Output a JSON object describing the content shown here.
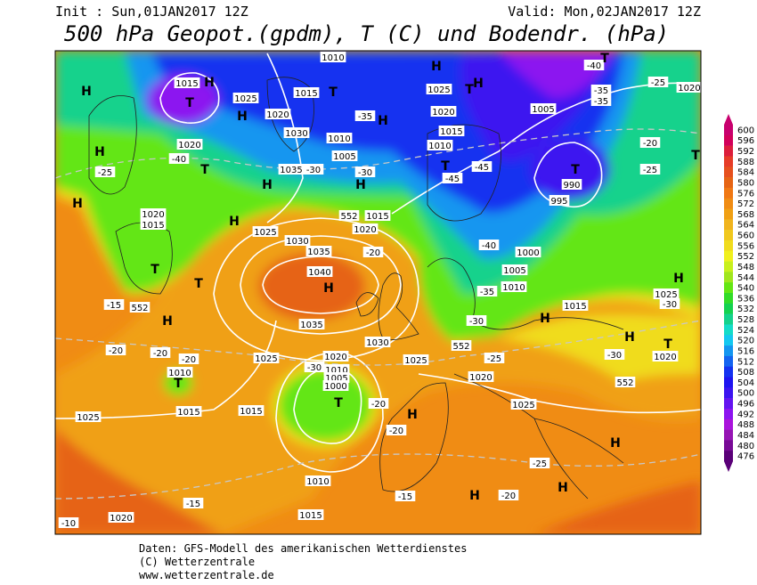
{
  "header": {
    "init": "Init : Sun,01JAN2017 12Z",
    "valid": "Valid: Mon,02JAN2017 12Z",
    "title": "500 hPa Geopot.(gpdm), T (C) und Bodendr. (hPa)"
  },
  "colorbar": {
    "ticks": [
      600,
      596,
      592,
      588,
      584,
      580,
      576,
      572,
      568,
      564,
      560,
      556,
      552,
      548,
      544,
      540,
      536,
      532,
      528,
      524,
      520,
      516,
      512,
      508,
      504,
      500,
      496,
      492,
      488,
      484,
      480,
      476
    ],
    "colors": [
      "#c8006e",
      "#d2005a",
      "#dc1e3c",
      "#e63c28",
      "#e6501e",
      "#e66414",
      "#f07814",
      "#f08c14",
      "#f0a014",
      "#f0b41e",
      "#f0c81e",
      "#f0dc1e",
      "#f0f01e",
      "#c8f01e",
      "#a0e61e",
      "#64e614",
      "#32dc28",
      "#14d250",
      "#14d28c",
      "#14dcc8",
      "#14c8f0",
      "#1496f0",
      "#1464f0",
      "#1432f0",
      "#1e14f0",
      "#3c14f0",
      "#6414f0",
      "#8c14f0",
      "#aa14dc",
      "#9614b4",
      "#780a96",
      "#5a0078"
    ]
  },
  "map": {
    "labels": [
      "H",
      "1015",
      "T",
      "H",
      "1025",
      "H",
      "1020",
      "1015",
      "T",
      "1010",
      "H",
      "1025",
      "T",
      "H",
      "1020",
      "1015",
      "1010",
      "-35",
      "H",
      "1030",
      "1010",
      "1005",
      "-30",
      "H",
      "1035",
      "-30",
      "H",
      "T",
      "-40",
      "1020",
      "H",
      "-25",
      "H",
      "1020",
      "1015",
      "H",
      "1025",
      "552",
      "1015",
      "1020",
      "T",
      "-45",
      "-45",
      "1005",
      "T",
      "990",
      "995",
      "-35",
      "-40",
      "T",
      "-35",
      "-25",
      "1020",
      "-20",
      "-25",
      "T",
      "1000",
      "1005",
      "1010",
      "-40",
      "-35",
      "1030",
      "1035",
      "-20",
      "1040",
      "H",
      "T",
      "T",
      "552",
      "-15",
      "H",
      "1035",
      "1030",
      "H",
      "1015",
      "1025",
      "-30",
      "H",
      "-30",
      "552",
      "-25",
      "H",
      "T",
      "1020",
      "-30",
      "552",
      "-20",
      "-20",
      "1010",
      "-20",
      "T",
      "1025",
      "1020",
      "-30",
      "1010",
      "1005",
      "1000",
      "T",
      "1025",
      "1020",
      "-20",
      "H",
      "1025",
      "1025",
      "1015",
      "1015",
      "-20",
      "1010",
      "-25",
      "H",
      "H",
      "H",
      "-20",
      "-15",
      "-15",
      "1015",
      "1020",
      "-10"
    ]
  },
  "footer": {
    "line1": "Daten: GFS-Modell des amerikanischen Wetterdienstes",
    "line2": "(C) Wetterzentrale",
    "line3": "www.wetterzentrale.de"
  }
}
